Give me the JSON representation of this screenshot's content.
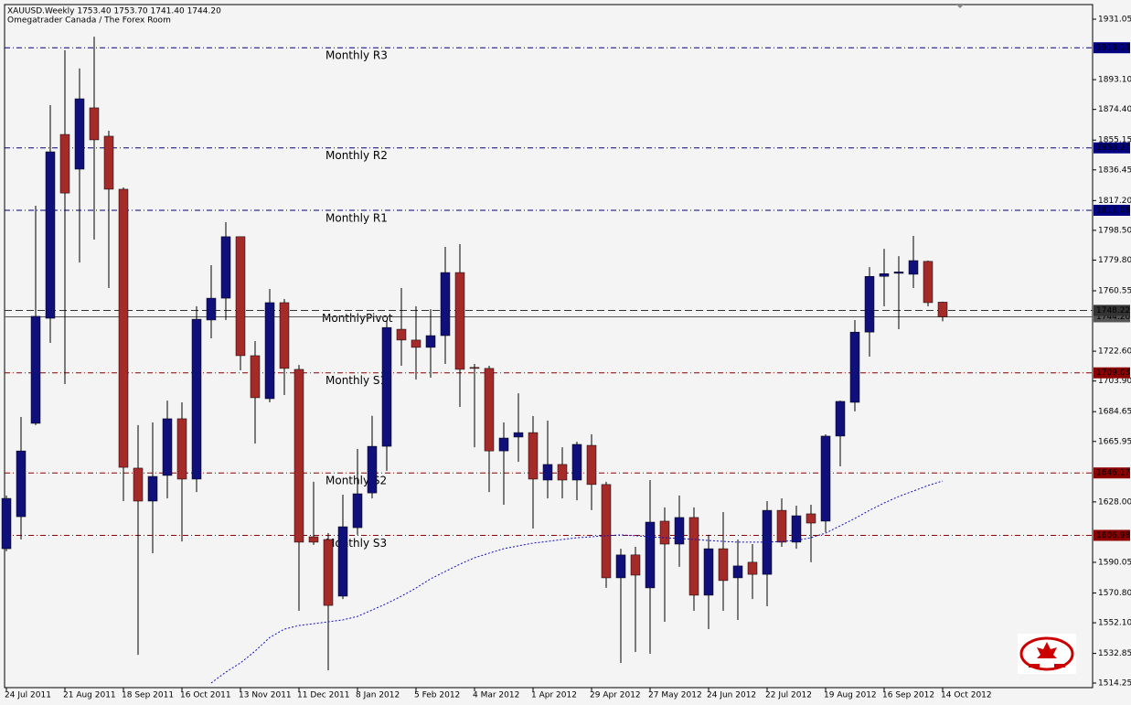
{
  "chart_data": {
    "type": "candlestick",
    "title": "XAUUSD.Weekly  1753.40 1753.70 1741.40 1744.20",
    "subtitle": "Omegatrader Canada / The Forex Room",
    "categories": [
      "24 Jul 2011",
      null,
      null,
      null,
      "21 Aug 2011",
      null,
      null,
      null,
      "18 Sep 2011",
      null,
      null,
      null,
      "16 Oct 2011",
      null,
      null,
      null,
      "13 Nov 2011",
      null,
      null,
      null,
      "11 Dec 2011",
      null,
      null,
      null,
      "8 Jan 2012",
      null,
      null,
      null,
      "5 Feb 2012",
      null,
      null,
      null,
      "4 Mar 2012",
      null,
      null,
      null,
      "1 Apr 2012",
      null,
      null,
      null,
      "29 Apr 2012",
      null,
      null,
      null,
      "27 May 2012",
      null,
      null,
      null,
      "24 Jun 2012",
      null,
      null,
      null,
      "22 Jul 2012",
      null,
      null,
      null,
      "19 Aug 2012",
      null,
      null,
      null,
      "16 Sep 2012",
      null,
      null,
      null,
      "14 Oct 2012"
    ],
    "open": [
      1598.6,
      1618.7,
      1677.3,
      1743.3,
      1858.7,
      1836.9,
      1875.4,
      1857.6,
      1824.3,
      1649.2,
      1628.5,
      1644.6,
      1680.2,
      1642.3,
      1742.2,
      1755.9,
      1794.5,
      1719.8,
      1692.8,
      1753.1,
      1711.2,
      1606.1,
      1604.4,
      1568.8,
      1611.8,
      1633.6,
      1662.9,
      1736.4,
      1729.6,
      1725.0,
      1732.4,
      1772.0,
      1712.4,
      1711.8,
      1660.0,
      1668.7,
      1671.5,
      1641.7,
      1651.5,
      1641.7,
      1663.5,
      1638.9,
      1580.3,
      1594.7,
      1574.0,
      1615.9,
      1601.5,
      1618.2,
      1569.4,
      1598.6,
      1580.3,
      1590.1,
      1582.5,
      1622.7,
      1602.7,
      1620.5,
      1615.9,
      1669.3,
      1690.5,
      1734.6,
      1769.6,
      1771.5,
      1770.9,
      1779.0,
      1753.4
    ],
    "high": [
      1632.0,
      1681.3,
      1813.9,
      1877.1,
      1911.5,
      1900.1,
      1920.1,
      1861.0,
      1825.4,
      1676.2,
      1677.9,
      1691.6,
      1690.5,
      1750.8,
      1776.6,
      1803.6,
      1794.5,
      1729.0,
      1761.7,
      1755.4,
      1714.0,
      1640.6,
      1608.4,
      1632.5,
      1661.2,
      1682.0,
      1742.2,
      1762.3,
      1750.8,
      1749.0,
      1788.1,
      1789.8,
      1714.6,
      1713.5,
      1677.9,
      1696.2,
      1681.9,
      1679.0,
      1662.3,
      1665.8,
      1670.4,
      1640.6,
      1598.6,
      1599.8,
      1641.7,
      1624.5,
      1632.0,
      1624.5,
      1607.3,
      1621.6,
      1604.4,
      1601.5,
      1628.5,
      1630.2,
      1625.6,
      1626.2,
      1670.4,
      1691.6,
      1742.2,
      1775.4,
      1786.9,
      1782.3,
      1795.0,
      1779.5,
      1753.7
    ],
    "low": [
      1597.0,
      1604.4,
      1676.2,
      1727.8,
      1702.0,
      1778.3,
      1792.7,
      1762.3,
      1628.5,
      1532.0,
      1595.8,
      1630.2,
      1603.2,
      1634.2,
      1730.7,
      1742.2,
      1710.6,
      1664.7,
      1690.5,
      1695.1,
      1559.6,
      1601.0,
      1522.3,
      1567.0,
      1607.3,
      1630.2,
      1647.5,
      1713.5,
      1704.8,
      1706.0,
      1714.6,
      1687.6,
      1662.3,
      1634.2,
      1626.2,
      1653.2,
      1611.3,
      1630.2,
      1630.2,
      1629.0,
      1622.8,
      1574.0,
      1526.9,
      1533.8,
      1532.6,
      1552.7,
      1587.2,
      1559.6,
      1548.1,
      1559.6,
      1553.9,
      1567.0,
      1562.5,
      1599.8,
      1598.6,
      1590.1,
      1609.0,
      1650.3,
      1684.8,
      1719.2,
      1750.8,
      1736.4,
      1762.3,
      1750.8,
      1741.4
    ],
    "close": [
      1630.2,
      1660.0,
      1744.5,
      1847.8,
      1821.9,
      1881.1,
      1855.3,
      1824.3,
      1649.7,
      1628.5,
      1644.0,
      1680.2,
      1642.3,
      1742.7,
      1755.9,
      1794.5,
      1719.8,
      1693.4,
      1753.1,
      1711.8,
      1602.7,
      1602.7,
      1563.0,
      1612.4,
      1633.1,
      1662.9,
      1737.5,
      1729.6,
      1725.0,
      1732.4,
      1772.0,
      1711.2,
      1711.8,
      1660.0,
      1668.1,
      1671.5,
      1642.3,
      1651.5,
      1641.7,
      1664.1,
      1638.9,
      1580.3,
      1594.7,
      1582.0,
      1615.3,
      1601.5,
      1618.2,
      1569.4,
      1598.6,
      1578.6,
      1587.8,
      1582.5,
      1622.7,
      1602.7,
      1619.3,
      1614.7,
      1669.3,
      1691.1,
      1734.6,
      1769.6,
      1771.3,
      1772.4,
      1779.5,
      1753.1,
      1744.2
    ],
    "up_color": "#10107a",
    "down_color": "#a52a2a",
    "ma": {
      "color": "#1010c0",
      "values": [
        null,
        null,
        null,
        null,
        null,
        null,
        null,
        null,
        null,
        null,
        null,
        null,
        null,
        null,
        1514.3,
        1521.1,
        1526.9,
        1534.3,
        1542.9,
        1548.1,
        1550.4,
        1551.5,
        1552.7,
        1553.9,
        1556.1,
        1560.1,
        1564.2,
        1568.8,
        1573.9,
        1579.7,
        1584.3,
        1588.9,
        1592.9,
        1595.8,
        1598.6,
        1600.4,
        1602.1,
        1603.2,
        1604.4,
        1605.5,
        1606.1,
        1606.7,
        1607.3,
        1606.7,
        1606.1,
        1605.5,
        1605.0,
        1604.4,
        1603.8,
        1603.2,
        1602.7,
        1602.7,
        1602.7,
        1603.2,
        1603.8,
        1605.5,
        1608.4,
        1613.0,
        1617.6,
        1622.7,
        1627.3,
        1631.4,
        1634.8,
        1638.3,
        1641.1
      ]
    },
    "levels": [
      {
        "name": "Monthly R3",
        "value": 1913.13,
        "color": "#000080"
      },
      {
        "name": "Monthly R2",
        "value": 1850.27,
        "color": "#000080"
      },
      {
        "name": "Monthly R1",
        "value": 1811.08,
        "color": "#000080"
      },
      {
        "name": "MonthlyPivot",
        "value": 1748.22,
        "color": "#333333"
      },
      {
        "name": "Monthly S1",
        "value": 1709.03,
        "color": "#8b0000"
      },
      {
        "name": "Monthly S2",
        "value": 1646.17,
        "color": "#8b0000"
      },
      {
        "name": "Monthly S3",
        "value": 1606.98,
        "color": "#8b0000"
      }
    ],
    "price_line": {
      "value": 1744.2,
      "label": "1744.20",
      "color": "#555555"
    },
    "ylim": [
      1511.38,
      1940.24
    ],
    "yticks": [
      {
        "value": 1931.05,
        "label": "1931.05"
      },
      {
        "value": 1893.1,
        "label": "1893.10"
      },
      {
        "value": 1874.4,
        "label": "1874.40"
      },
      {
        "value": 1855.15,
        "label": "1855.15"
      },
      {
        "value": 1836.45,
        "label": "1836.45"
      },
      {
        "value": 1817.2,
        "label": "1817.20"
      },
      {
        "value": 1798.5,
        "label": "1798.50"
      },
      {
        "value": 1779.8,
        "label": "1779.80"
      },
      {
        "value": 1760.55,
        "label": "1760.55"
      },
      {
        "value": 1722.6,
        "label": "1722.60"
      },
      {
        "value": 1703.9,
        "label": "1703.90"
      },
      {
        "value": 1684.65,
        "label": "1684.65"
      },
      {
        "value": 1665.95,
        "label": "1665.95"
      },
      {
        "value": 1628.0,
        "label": "1628.00"
      },
      {
        "value": 1590.05,
        "label": "1590.05"
      },
      {
        "value": 1570.8,
        "label": "1570.80"
      },
      {
        "value": 1552.1,
        "label": "1552.10"
      },
      {
        "value": 1532.85,
        "label": "1532.85"
      },
      {
        "value": 1514.25,
        "label": "1514.25"
      }
    ]
  }
}
